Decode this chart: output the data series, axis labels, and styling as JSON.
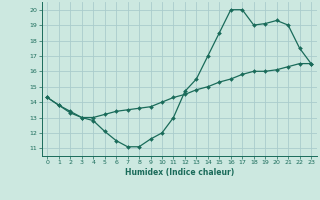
{
  "xlabel": "Humidex (Indice chaleur)",
  "bg_color": "#cce8e0",
  "grid_color": "#aacccc",
  "line_color": "#1a6b5a",
  "xlim": [
    -0.5,
    23.5
  ],
  "ylim": [
    10.5,
    20.5
  ],
  "xticks": [
    0,
    1,
    2,
    3,
    4,
    5,
    6,
    7,
    8,
    9,
    10,
    11,
    12,
    13,
    14,
    15,
    16,
    17,
    18,
    19,
    20,
    21,
    22,
    23
  ],
  "yticks": [
    11,
    12,
    13,
    14,
    15,
    16,
    17,
    18,
    19,
    20
  ],
  "curve1_x": [
    0,
    1,
    2,
    3,
    4,
    5,
    6,
    7,
    8,
    9,
    10,
    11,
    12,
    13,
    14,
    15,
    16,
    17,
    18,
    19,
    20,
    21,
    22,
    23
  ],
  "curve1_y": [
    14.3,
    13.8,
    13.4,
    13.0,
    12.8,
    12.1,
    11.5,
    11.1,
    11.1,
    11.6,
    12.0,
    13.0,
    14.7,
    15.5,
    17.0,
    18.5,
    20.0,
    20.0,
    19.0,
    19.1,
    19.3,
    19.0,
    17.5,
    16.5
  ],
  "curve2_x": [
    0,
    1,
    2,
    3,
    4,
    5,
    6,
    7,
    8,
    9,
    10,
    11,
    12,
    13,
    14,
    15,
    16,
    17,
    18,
    19,
    20,
    21,
    22,
    23
  ],
  "curve2_y": [
    14.3,
    13.8,
    13.3,
    13.0,
    13.0,
    13.2,
    13.4,
    13.5,
    13.6,
    13.7,
    14.0,
    14.3,
    14.5,
    14.8,
    15.0,
    15.3,
    15.5,
    15.8,
    16.0,
    16.0,
    16.1,
    16.3,
    16.5,
    16.5
  ]
}
